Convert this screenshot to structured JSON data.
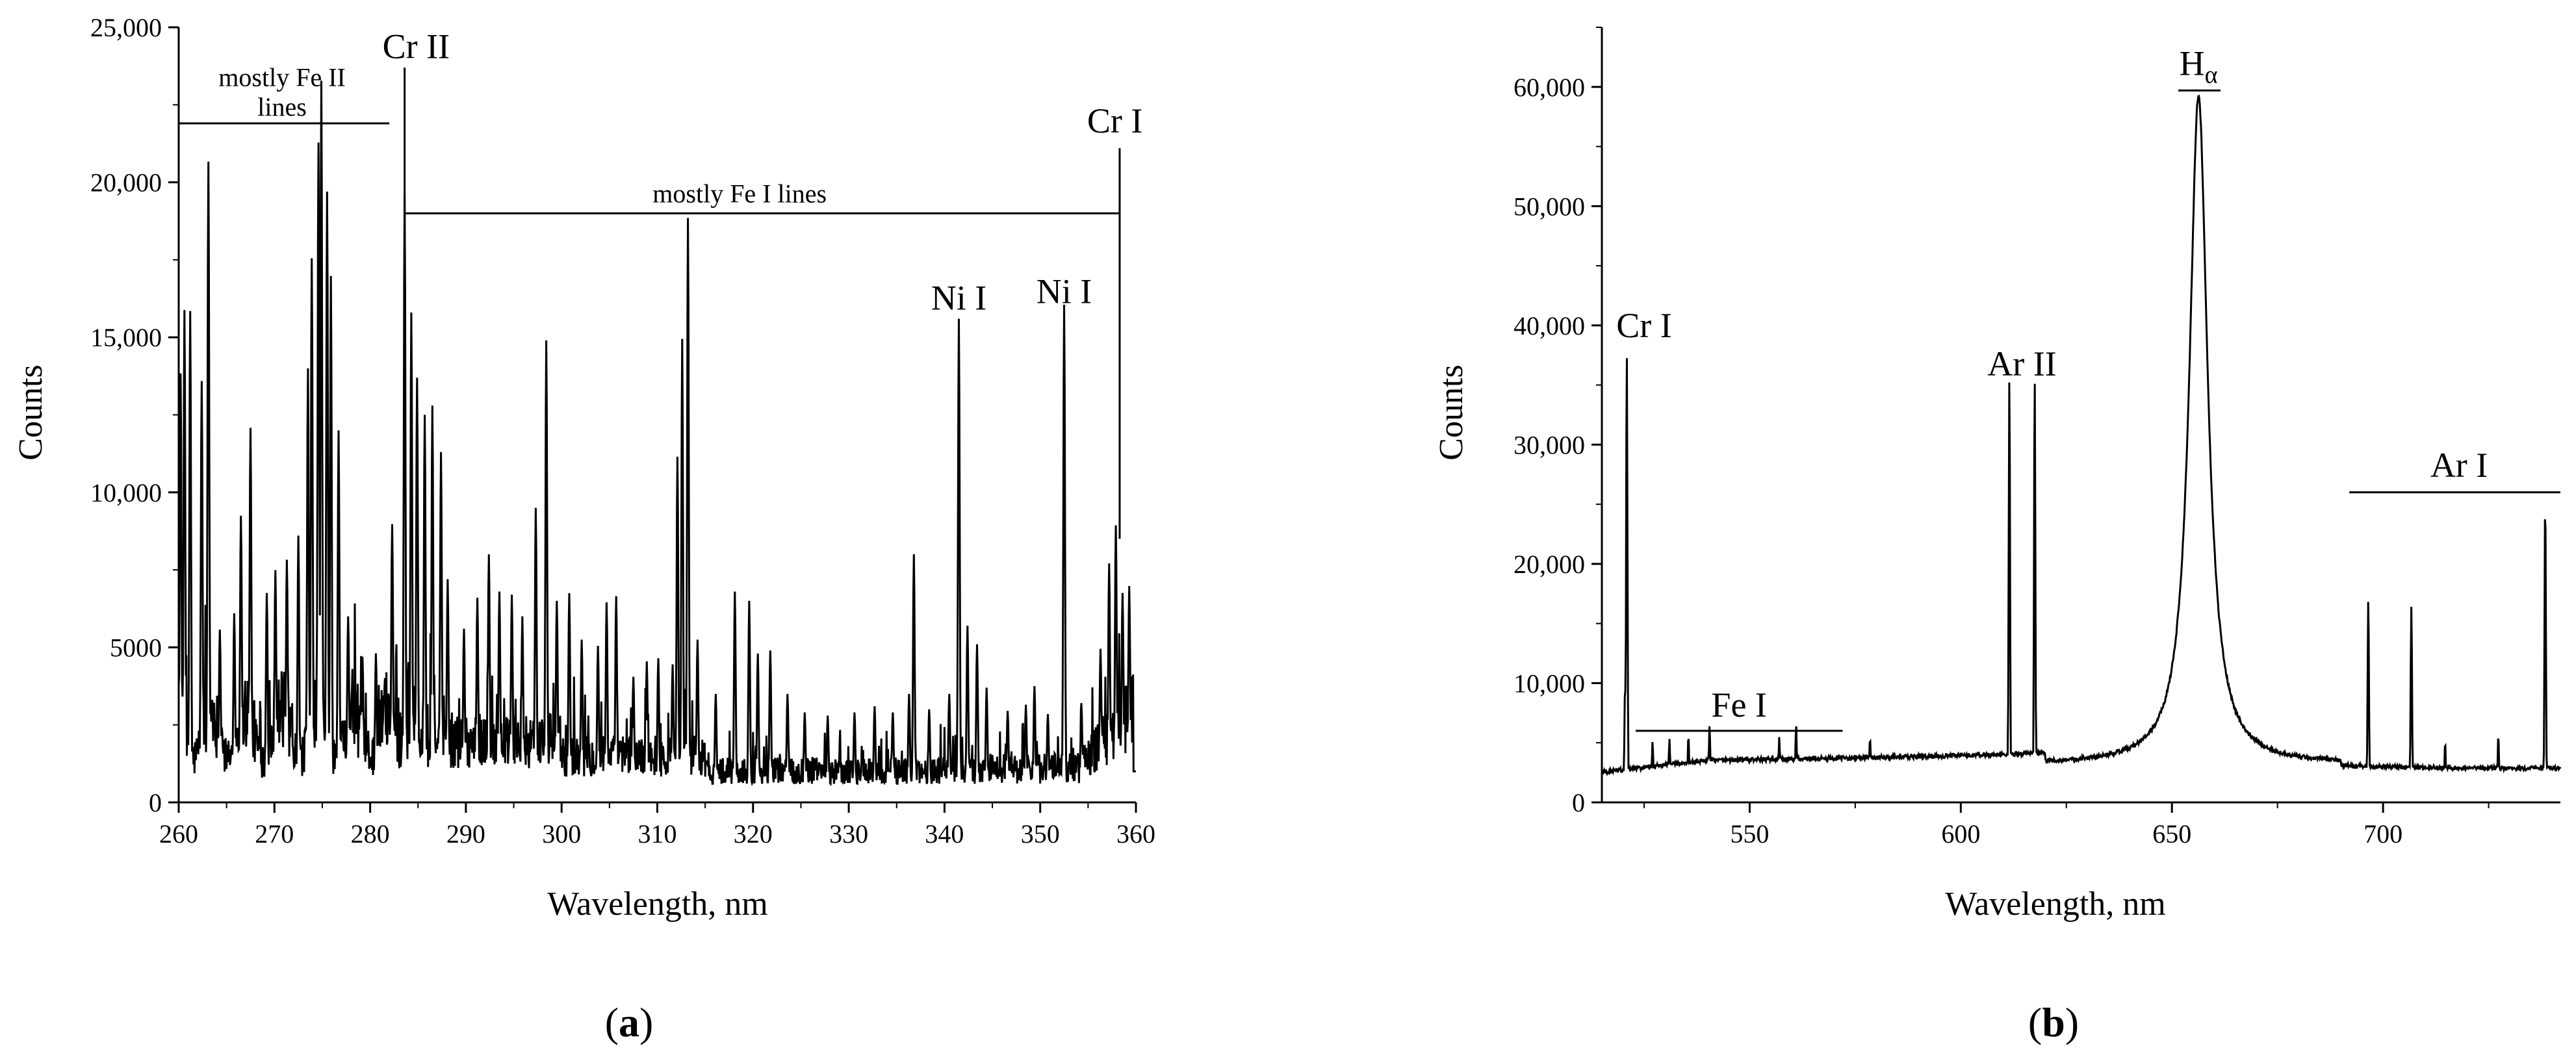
{
  "chart_data": [
    {
      "type": "line",
      "panel_label": "a",
      "xlabel": "Wavelength, nm",
      "ylabel": "Counts",
      "xlim": [
        260,
        360
      ],
      "ylim": [
        0,
        25000
      ],
      "xticks": [
        260,
        270,
        280,
        290,
        300,
        310,
        320,
        330,
        340,
        350,
        360
      ],
      "xtick_labels": [
        "260",
        "270",
        "280",
        "290",
        "300",
        "310",
        "320",
        "330",
        "340",
        "350",
        "360"
      ],
      "yticks": [
        0,
        5000,
        10000,
        15000,
        20000,
        25000
      ],
      "ytick_labels": [
        "0",
        "5000",
        "10,000",
        "15,000",
        "20,000",
        "25,000"
      ],
      "grid": false,
      "peaks": [
        [
          260.2,
          12500
        ],
        [
          260.6,
          14800
        ],
        [
          261.2,
          15100
        ],
        [
          262.4,
          12500
        ],
        [
          263.1,
          19200
        ],
        [
          264.3,
          4500
        ],
        [
          265.8,
          5200
        ],
        [
          266.5,
          7900
        ],
        [
          267.5,
          10700
        ],
        [
          269.2,
          6000
        ],
        [
          270.1,
          6200
        ],
        [
          271.3,
          6500
        ],
        [
          272.5,
          7900
        ],
        [
          273.5,
          12900
        ],
        [
          273.9,
          16200
        ],
        [
          274.6,
          19800
        ],
        [
          274.9,
          21900
        ],
        [
          275.5,
          18700
        ],
        [
          275.9,
          16200
        ],
        [
          276.7,
          11200
        ],
        [
          277.7,
          4600
        ],
        [
          279.2,
          3700
        ],
        [
          280.6,
          3900
        ],
        [
          282.3,
          7600
        ],
        [
          283.6,
          18600
        ],
        [
          284.3,
          14800
        ],
        [
          284.9,
          12700
        ],
        [
          285.7,
          11500
        ],
        [
          286.5,
          11800
        ],
        [
          287.4,
          10300
        ],
        [
          288.1,
          6200
        ],
        [
          289.8,
          4600
        ],
        [
          291.2,
          5600
        ],
        [
          292.4,
          7000
        ],
        [
          293.5,
          5800
        ],
        [
          294.8,
          5700
        ],
        [
          295.9,
          5000
        ],
        [
          297.3,
          8500
        ],
        [
          298.4,
          13900
        ],
        [
          299.5,
          5500
        ],
        [
          300.8,
          6000
        ],
        [
          302.1,
          4500
        ],
        [
          303.8,
          4300
        ],
        [
          304.7,
          5700
        ],
        [
          305.7,
          5900
        ],
        [
          307.5,
          3300
        ],
        [
          308.9,
          3800
        ],
        [
          310.1,
          3900
        ],
        [
          311.6,
          3700
        ],
        [
          312.1,
          10400
        ],
        [
          312.6,
          14200
        ],
        [
          313.2,
          18100
        ],
        [
          314.2,
          4500
        ],
        [
          316.1,
          3000
        ],
        [
          318.1,
          6300
        ],
        [
          319.6,
          6000
        ],
        [
          320.5,
          4300
        ],
        [
          321.8,
          4400
        ],
        [
          323.6,
          3000
        ],
        [
          325.4,
          2400
        ],
        [
          327.8,
          2300
        ],
        [
          330.6,
          2400
        ],
        [
          332.7,
          2600
        ],
        [
          334.6,
          2400
        ],
        [
          336.3,
          3000
        ],
        [
          336.8,
          7500
        ],
        [
          338.4,
          2500
        ],
        [
          340.5,
          3000
        ],
        [
          341.5,
          15100
        ],
        [
          342.4,
          5200
        ],
        [
          343.4,
          4600
        ],
        [
          344.4,
          3200
        ],
        [
          346.6,
          2400
        ],
        [
          348.5,
          2600
        ],
        [
          349.4,
          3200
        ],
        [
          350.8,
          2300
        ],
        [
          352.5,
          15500
        ],
        [
          354.3,
          2600
        ],
        [
          356.3,
          4000
        ],
        [
          357.2,
          6600
        ],
        [
          357.9,
          7700
        ],
        [
          358.6,
          5400
        ],
        [
          359.3,
          5500
        ]
      ],
      "annotations": [
        {
          "text": "mostly Fe II",
          "span": [
            260,
            282
          ]
        },
        {
          "text": "lines"
        },
        {
          "text": "Cr II",
          "x": 283.6
        },
        {
          "text": "mostly Fe I lines",
          "span": [
            283.6,
            358.3
          ]
        },
        {
          "text": "Ni I",
          "x": 341.5
        },
        {
          "text": "Ni I",
          "x": 352.5
        },
        {
          "text": "Cr I",
          "x": 358.3
        }
      ]
    },
    {
      "type": "line",
      "panel_label": "b",
      "xlabel": "Wavelength, nm",
      "ylabel": "Counts",
      "xlim": [
        515,
        742
      ],
      "ylim": [
        0,
        65000
      ],
      "xticks": [
        550,
        600,
        650,
        700
      ],
      "xtick_labels": [
        "550",
        "600",
        "650",
        "700"
      ],
      "yticks": [
        0,
        10000,
        20000,
        30000,
        40000,
        50000,
        60000
      ],
      "ytick_labels": [
        "0",
        "10,000",
        "20,000",
        "30,000",
        "40,000",
        "50,000",
        "60,000"
      ],
      "grid": false,
      "peaks": [
        [
          520.5,
          9000
        ],
        [
          520.9,
          37000
        ],
        [
          527.0,
          4200
        ],
        [
          531.0,
          4400
        ],
        [
          535.5,
          4600
        ],
        [
          540.5,
          5400
        ],
        [
          557.0,
          4400
        ],
        [
          561.0,
          5400
        ],
        [
          578.5,
          4300
        ],
        [
          611.5,
          34500
        ],
        [
          617.5,
          34500
        ],
        [
          664.0,
          8200
        ],
        [
          696.5,
          16200
        ],
        [
          706.7,
          15600
        ],
        [
          714.7,
          4200
        ],
        [
          727.3,
          4800
        ],
        [
          738.4,
          24500
        ]
      ],
      "annotations": [
        {
          "text": "Cr I",
          "x": 520.9
        },
        {
          "text": "Fe I",
          "span": [
            523,
            572
          ]
        },
        {
          "text": "Ar II",
          "x": 614.5
        },
        {
          "text": "H",
          "sub": "α",
          "x": 656.3,
          "peak": 58500
        },
        {
          "text": "Ar I",
          "span": [
            692,
            742
          ]
        }
      ]
    }
  ]
}
